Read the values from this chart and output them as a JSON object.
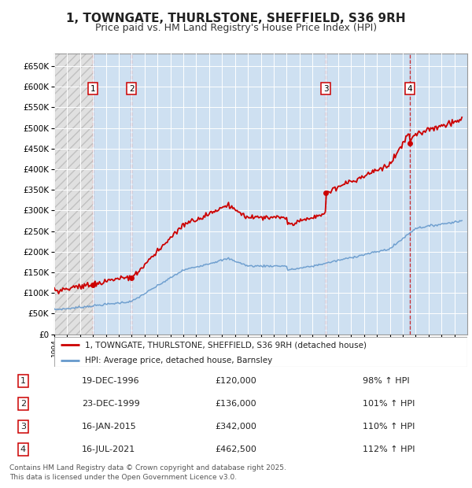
{
  "title": "1, TOWNGATE, THURLSTONE, SHEFFIELD, S36 9RH",
  "subtitle": "Price paid vs. HM Land Registry's House Price Index (HPI)",
  "title_fontsize": 11,
  "subtitle_fontsize": 9,
  "background_color": "#ffffff",
  "plot_bg_color": "#dce9f5",
  "grid_color": "#ffffff",
  "sale_color": "#cc0000",
  "hpi_color": "#6699cc",
  "ylabel_values": [
    0,
    50000,
    100000,
    150000,
    200000,
    250000,
    300000,
    350000,
    400000,
    450000,
    500000,
    550000,
    600000,
    650000
  ],
  "xmin": 1994.0,
  "xmax": 2026.0,
  "ymin": 0,
  "ymax": 680000,
  "sale_transactions": [
    {
      "year": 1996.97,
      "price": 120000,
      "label": "1"
    },
    {
      "year": 1999.98,
      "price": 136000,
      "label": "2"
    },
    {
      "year": 2015.04,
      "price": 342000,
      "label": "3"
    },
    {
      "year": 2021.54,
      "price": 462500,
      "label": "4"
    }
  ],
  "annotations": [
    {
      "label": "1",
      "date": "19-DEC-1996",
      "price": "£120,000",
      "pct": "98% ↑ HPI"
    },
    {
      "label": "2",
      "date": "23-DEC-1999",
      "price": "£136,000",
      "pct": "101% ↑ HPI"
    },
    {
      "label": "3",
      "date": "16-JAN-2015",
      "price": "£342,000",
      "pct": "110% ↑ HPI"
    },
    {
      "label": "4",
      "date": "16-JUL-2021",
      "price": "£462,500",
      "pct": "112% ↑ HPI"
    }
  ],
  "footer": "Contains HM Land Registry data © Crown copyright and database right 2025.\nThis data is licensed under the Open Government Licence v3.0.",
  "legend_sale": "1, TOWNGATE, THURLSTONE, SHEFFIELD, S36 9RH (detached house)",
  "legend_hpi": "HPI: Average price, detached house, Barnsley"
}
